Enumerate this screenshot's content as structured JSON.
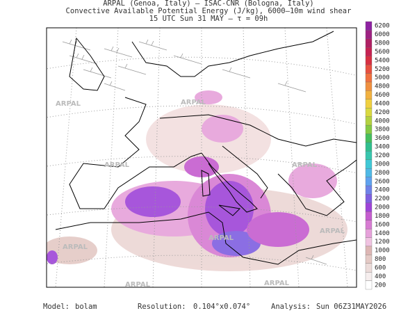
{
  "header": {
    "line1": "ARPAL (Genoa, Italy)  –  ISAC-CNR (Bologna, Italy)",
    "line2": "Convective Available Potential Energy (J/kg), 6000–10m wind shear",
    "line3": "15 UTC Sun 31 MAY  –  τ = 09h"
  },
  "watermark": "ARPAL",
  "colorbar": {
    "labels": [
      "200",
      "400",
      "600",
      "800",
      "1000",
      "1200",
      "1400",
      "1600",
      "1800",
      "2000",
      "2200",
      "2400",
      "2600",
      "2800",
      "3000",
      "3200",
      "3400",
      "3600",
      "3800",
      "4000",
      "4200",
      "4400",
      "4600",
      "4800",
      "5000",
      "5200",
      "5400",
      "5600",
      "5800",
      "6000",
      "6200"
    ],
    "colors": [
      "#ffffff",
      "#f6eeee",
      "#ecdcda",
      "#e4c9c5",
      "#ddb6b4",
      "#f0c3e1",
      "#e6a1da",
      "#d77cd2",
      "#c55dcf",
      "#9e44d8",
      "#7f5fe0",
      "#6f82e8",
      "#5fa2ef",
      "#4fb9e6",
      "#40c8d6",
      "#38c6ae",
      "#31bf8e",
      "#45bf5e",
      "#84c944",
      "#b3d141",
      "#d9d940",
      "#f0d040",
      "#f1b140",
      "#f09040",
      "#ef7140",
      "#e75040",
      "#d73042",
      "#c62252",
      "#b02064",
      "#9e2282",
      "#8e22a2"
    ]
  },
  "footer": {
    "model_label": "Model:",
    "model": "bolam",
    "resolution_label": "Resolution:",
    "resolution": "0.104°x0.074°",
    "analysis_label": "Analysis:",
    "analysis": "Sun 06Z31MAY2026"
  }
}
